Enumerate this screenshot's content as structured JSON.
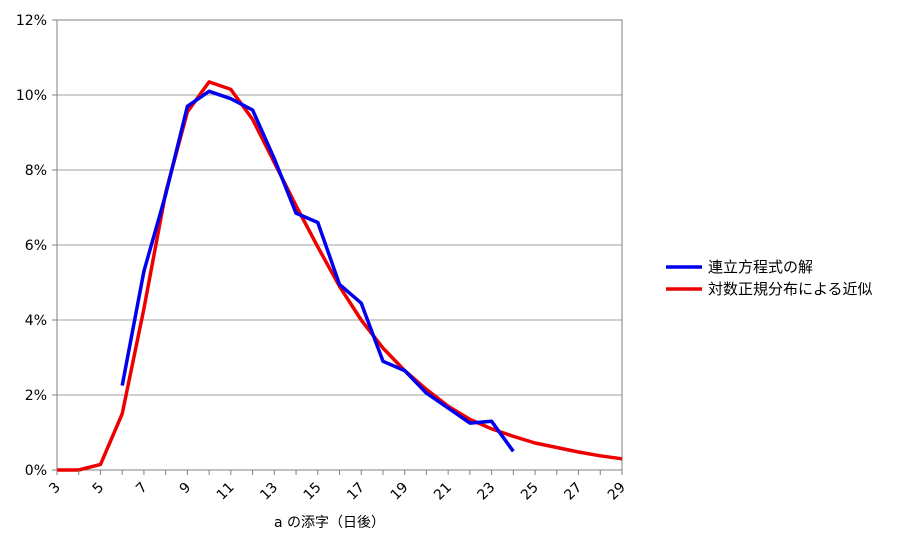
{
  "chart_data": {
    "type": "line",
    "xlabel": "a の添字（日後）",
    "ylabel": "",
    "xlim": [
      3,
      29
    ],
    "ylim": [
      0,
      12
    ],
    "x_ticks": [
      3,
      5,
      7,
      9,
      11,
      13,
      15,
      17,
      19,
      21,
      23,
      25,
      27,
      29
    ],
    "y_ticks": [
      0,
      2,
      4,
      6,
      8,
      10,
      12
    ],
    "y_tick_labels": [
      "0%",
      "2%",
      "4%",
      "6%",
      "8%",
      "10%",
      "12%"
    ],
    "grid": "horizontal",
    "legend_position": "right",
    "series": [
      {
        "name": "連立方程式の解",
        "color": "#0000ee",
        "x": [
          6,
          7,
          8,
          9,
          10,
          11,
          12,
          13,
          14,
          15,
          16,
          17,
          18,
          19,
          20,
          21,
          22,
          23,
          24
        ],
        "y": [
          2.25,
          5.3,
          7.35,
          9.7,
          10.1,
          9.9,
          9.6,
          8.3,
          6.85,
          6.6,
          4.95,
          4.45,
          2.9,
          2.65,
          2.05,
          1.65,
          1.25,
          1.3,
          0.5
        ]
      },
      {
        "name": "対数正規分布による近似",
        "color": "#ee0000",
        "x": [
          3,
          4,
          5,
          6,
          7,
          8,
          9,
          10,
          11,
          12,
          13,
          14,
          15,
          16,
          17,
          18,
          19,
          20,
          21,
          22,
          23,
          24,
          25,
          26,
          27,
          28,
          29
        ],
        "y": [
          0,
          0,
          0.15,
          1.5,
          4.3,
          7.4,
          9.55,
          10.35,
          10.15,
          9.35,
          8.2,
          7.05,
          5.95,
          4.9,
          4.0,
          3.25,
          2.65,
          2.15,
          1.7,
          1.35,
          1.1,
          0.9,
          0.72,
          0.6,
          0.48,
          0.38,
          0.3
        ]
      }
    ]
  }
}
